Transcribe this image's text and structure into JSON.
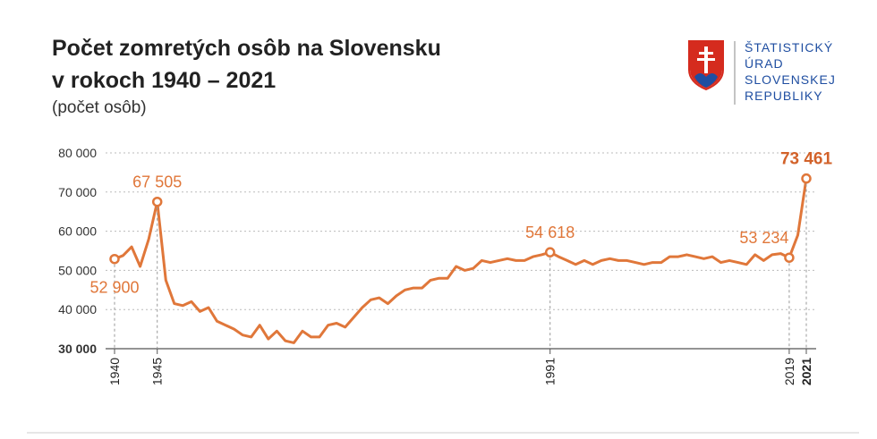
{
  "header": {
    "logo": [
      "ŠTATISTICKÝ",
      "ÚRAD",
      "SLOVENSKEJ",
      "REPUBLIKY"
    ]
  },
  "chart_data": {
    "type": "line",
    "title": [
      "Počet zomretých osôb na Slovensku",
      "v rokoch 1940 – 2021"
    ],
    "subtitle": "(počet osôb)",
    "x": [
      1940,
      1941,
      1942,
      1943,
      1944,
      1945,
      1946,
      1947,
      1948,
      1949,
      1950,
      1951,
      1952,
      1953,
      1954,
      1955,
      1956,
      1957,
      1958,
      1959,
      1960,
      1961,
      1962,
      1963,
      1964,
      1965,
      1966,
      1967,
      1968,
      1969,
      1970,
      1971,
      1972,
      1973,
      1974,
      1975,
      1976,
      1977,
      1978,
      1979,
      1980,
      1981,
      1982,
      1983,
      1984,
      1985,
      1986,
      1987,
      1988,
      1989,
      1990,
      1991,
      1992,
      1993,
      1994,
      1995,
      1996,
      1997,
      1998,
      1999,
      2000,
      2001,
      2002,
      2003,
      2004,
      2005,
      2006,
      2007,
      2008,
      2009,
      2010,
      2011,
      2012,
      2013,
      2014,
      2015,
      2016,
      2017,
      2018,
      2019,
      2020,
      2021
    ],
    "series": [
      {
        "color": "#e0773a",
        "values": [
          52900,
          53800,
          56000,
          51000,
          58000,
          67505,
          47500,
          41500,
          41000,
          42000,
          39500,
          40500,
          37000,
          36000,
          35000,
          33500,
          33000,
          36000,
          32500,
          34500,
          32000,
          31500,
          34500,
          33000,
          33000,
          36000,
          36500,
          35500,
          38000,
          40500,
          42500,
          43000,
          41500,
          43500,
          45000,
          45500,
          45500,
          47500,
          48000,
          48000,
          51000,
          50000,
          50500,
          52500,
          52000,
          52500,
          53000,
          52500,
          52500,
          53500,
          54000,
          54618,
          53500,
          52500,
          51500,
          52500,
          51500,
          52500,
          53000,
          52500,
          52500,
          52000,
          51500,
          52000,
          52000,
          53500,
          53500,
          54000,
          53500,
          53000,
          53500,
          52000,
          52500,
          52000,
          51500,
          54000,
          52500,
          54000,
          54300,
          53234,
          59000,
          73461
        ],
        "value_labels": [
          "52 900",
          null,
          null,
          null,
          null,
          "67 505",
          null,
          null,
          null,
          null,
          null,
          null,
          null,
          null,
          null,
          null,
          null,
          null,
          null,
          null,
          null,
          null,
          null,
          null,
          null,
          null,
          null,
          null,
          null,
          null,
          null,
          null,
          null,
          null,
          null,
          null,
          null,
          null,
          null,
          null,
          null,
          null,
          null,
          null,
          null,
          null,
          null,
          null,
          null,
          null,
          null,
          "54 618",
          null,
          null,
          null,
          null,
          null,
          null,
          null,
          null,
          null,
          null,
          null,
          null,
          null,
          null,
          null,
          null,
          null,
          null,
          null,
          null,
          null,
          null,
          null,
          null,
          null,
          null,
          null,
          "53 234",
          null,
          "73 461"
        ]
      }
    ],
    "xlim": [
      1940,
      2021
    ],
    "xticks": [
      1940,
      1945,
      1991,
      2019,
      2021
    ],
    "ylim": [
      30000,
      80000
    ],
    "yticks": [
      {
        "value": 30000,
        "label": "30 000"
      },
      {
        "value": 40000,
        "label": "40 000"
      },
      {
        "value": 50000,
        "label": "50 000"
      },
      {
        "value": 60000,
        "label": "60 000"
      },
      {
        "value": 70000,
        "label": "70 000"
      },
      {
        "value": 80000,
        "label": "80 000"
      }
    ],
    "grid": true
  }
}
